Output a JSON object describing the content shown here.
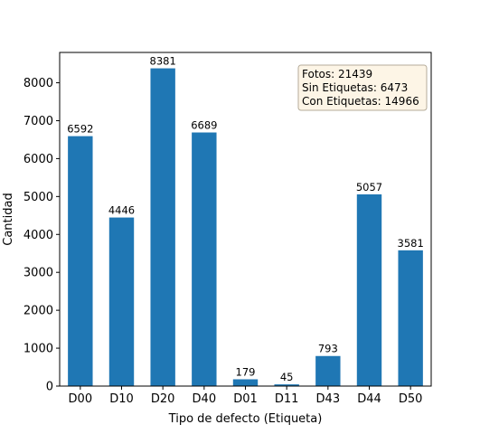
{
  "chart_data": {
    "type": "bar",
    "title": "",
    "xlabel": "Tipo de defecto (Etiqueta)",
    "ylabel": "Cantidad",
    "categories": [
      "D00",
      "D10",
      "D20",
      "D40",
      "D01",
      "D11",
      "D43",
      "D44",
      "D50"
    ],
    "values": [
      6592,
      4446,
      8381,
      6689,
      179,
      45,
      793,
      5057,
      3581
    ],
    "data_labels": [
      "6592",
      "4446",
      "8381",
      "6689",
      "179",
      "45",
      "793",
      "5057",
      "3581"
    ],
    "ylim": [
      0,
      8800
    ],
    "yticks": [
      0,
      1000,
      2000,
      3000,
      4000,
      5000,
      6000,
      7000,
      8000
    ],
    "bar_color": "#1f77b4",
    "grid": false,
    "legend": "none",
    "annotation": {
      "placement": "top-right",
      "lines": [
        "Fotos: 21439",
        "Sin Etiquetas: 6473",
        "Con Etiquetas: 14966"
      ],
      "background": "#fdf5e6",
      "border": "#b5ab99"
    }
  }
}
